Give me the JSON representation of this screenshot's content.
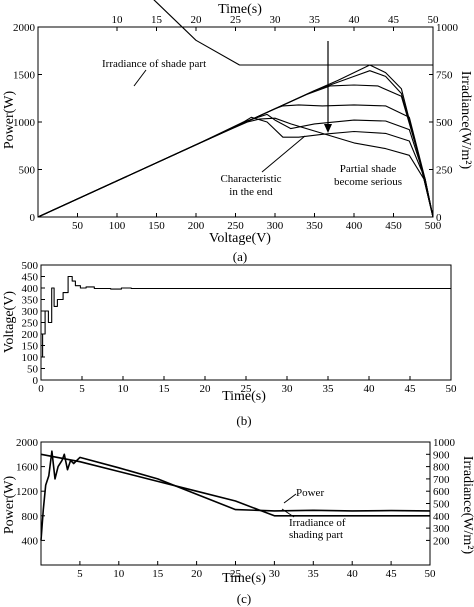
{
  "chart_data": [
    {
      "type": "line",
      "caption": "(a)",
      "xlabel": "Voltage(V)",
      "x2label": "Time(s)",
      "ylabel": "Power(W)",
      "y2label": "Irradiance(W/m²)",
      "xlim": [
        0,
        500
      ],
      "x2lim": [
        0,
        50
      ],
      "ylim": [
        0,
        2000
      ],
      "y2lim": [
        0,
        1000
      ],
      "xticks": [
        "50",
        "100",
        "150",
        "200",
        "250",
        "300",
        "350",
        "400",
        "450",
        "500"
      ],
      "x2ticks": [
        "10",
        "15",
        "20",
        "25",
        "30",
        "35",
        "40",
        "45",
        "50"
      ],
      "yticks": [
        "0",
        "500",
        "1000",
        "1500",
        "2000"
      ],
      "y2ticks": [
        "0",
        "250",
        "500",
        "750",
        "1000"
      ],
      "annotations": {
        "irradiance": "Irradiance of shade part",
        "char_end_1": "Characteristic",
        "char_end_2": "in the end",
        "partial_1": "Partial shade",
        "partial_2": "become serious"
      },
      "series": [
        {
          "x": [
            0,
            100,
            200,
            250,
            300,
            350,
            380,
            400,
            420,
            440,
            460,
            480,
            500
          ],
          "y": [
            0,
            380,
            760,
            950,
            1140,
            1330,
            1440,
            1520,
            1600,
            1520,
            1350,
            700,
            0
          ]
        },
        {
          "x": [
            0,
            100,
            200,
            250,
            300,
            350,
            400,
            420,
            440,
            460,
            480,
            500
          ],
          "y": [
            0,
            380,
            760,
            950,
            1140,
            1330,
            1480,
            1540,
            1480,
            1300,
            700,
            0
          ]
        },
        {
          "x": [
            0,
            100,
            200,
            250,
            300,
            340,
            370,
            400,
            430,
            460,
            480,
            500
          ],
          "y": [
            0,
            380,
            760,
            950,
            1140,
            1290,
            1380,
            1390,
            1380,
            1270,
            700,
            0
          ]
        },
        {
          "x": [
            0,
            100,
            200,
            250,
            300,
            310,
            330,
            360,
            400,
            440,
            470,
            490,
            500
          ],
          "y": [
            0,
            380,
            760,
            950,
            1140,
            1170,
            1180,
            1170,
            1180,
            1170,
            1050,
            400,
            0
          ]
        },
        {
          "x": [
            0,
            100,
            200,
            260,
            290,
            300,
            320,
            350,
            400,
            440,
            470,
            490,
            500
          ],
          "y": [
            0,
            380,
            760,
            1000,
            1080,
            1020,
            930,
            980,
            1020,
            1010,
            920,
            400,
            0
          ]
        },
        {
          "x": [
            0,
            100,
            200,
            250,
            270,
            290,
            310,
            330,
            360,
            400,
            440,
            470,
            490,
            500
          ],
          "y": [
            0,
            380,
            760,
            950,
            1050,
            1000,
            840,
            840,
            870,
            900,
            880,
            800,
            400,
            0
          ]
        },
        {
          "x": [
            0,
            100,
            200,
            240,
            265,
            280,
            300,
            320,
            360,
            400,
            440,
            470,
            490,
            500
          ],
          "y": [
            0,
            380,
            760,
            910,
            1000,
            1030,
            1040,
            980,
            880,
            780,
            720,
            650,
            380,
            0
          ]
        },
        {
          "x": [
            0,
            50,
            100,
            150,
            200,
            255,
            400,
            500
          ],
          "y": [
            1750,
            1540,
            1330,
            1130,
            930,
            800,
            800,
            800
          ],
          "axis": "irradiance"
        }
      ]
    },
    {
      "type": "line",
      "caption": "(b)",
      "xlabel": "Time(s)",
      "ylabel": "Voltage(V)",
      "xlim": [
        0,
        50
      ],
      "ylim": [
        0,
        500
      ],
      "xticks": [
        "0",
        "5",
        "10",
        "15",
        "20",
        "25",
        "30",
        "35",
        "40",
        "45",
        "50"
      ],
      "yticks": [
        "0",
        "50",
        "100",
        "150",
        "200",
        "250",
        "300",
        "350",
        "400",
        "450",
        "500"
      ],
      "series": [
        {
          "x": [
            0,
            0.2,
            0.2,
            0.5,
            0.5,
            0.9,
            0.9,
            1.3,
            1.3,
            1.6,
            1.6,
            2.0,
            2.0,
            2.7,
            2.7,
            3.3,
            3.3,
            3.8,
            3.8,
            4.2,
            4.2,
            4.8,
            4.8,
            5.5,
            5.5,
            6.5,
            6.5,
            8.5,
            8.5,
            9.8,
            9.8,
            11,
            11,
            50
          ],
          "y": [
            100,
            100,
            200,
            200,
            300,
            300,
            250,
            250,
            400,
            400,
            320,
            320,
            350,
            350,
            380,
            380,
            450,
            450,
            430,
            430,
            410,
            410,
            400,
            400,
            405,
            405,
            398,
            398,
            395,
            395,
            400,
            400,
            398,
            398
          ]
        }
      ]
    },
    {
      "type": "line",
      "caption": "(c)",
      "xlabel": "Time(s)",
      "ylabel": "Power(W)",
      "y2label": "Irradiance(W/m²)",
      "xlim": [
        0,
        50
      ],
      "ylim": [
        0,
        2000
      ],
      "y2lim": [
        0,
        1000
      ],
      "xticks": [
        "5",
        "10",
        "15",
        "20",
        "25",
        "30",
        "35",
        "40",
        "45",
        "50"
      ],
      "yticks": [
        "400",
        "800",
        "1200",
        "1600",
        "2000"
      ],
      "y2ticks": [
        "200",
        "300",
        "400",
        "500",
        "600",
        "700",
        "800",
        "900",
        "1000"
      ],
      "annotations": {
        "power": "Power",
        "irr_1": "Irradiance of",
        "irr_2": "shading part"
      },
      "series": [
        {
          "name": "Power",
          "x": [
            0,
            0.3,
            0.6,
            1.0,
            1.4,
            1.8,
            2.2,
            2.7,
            3.0,
            3.4,
            3.8,
            4.2,
            4.6,
            5.0,
            10,
            15,
            20,
            25,
            30,
            35,
            40,
            45,
            50
          ],
          "y": [
            400,
            900,
            1300,
            1450,
            1850,
            1400,
            1600,
            1700,
            1800,
            1550,
            1700,
            1650,
            1700,
            1750,
            1580,
            1400,
            1150,
            900,
            880,
            890,
            880,
            885,
            880
          ]
        },
        {
          "name": "Irradiance of shading part",
          "x": [
            0,
            5,
            10,
            15,
            20,
            25,
            30,
            35,
            40,
            45,
            50
          ],
          "y": [
            900,
            840,
            760,
            680,
            600,
            520,
            400,
            400,
            400,
            400,
            400
          ],
          "axis": "irradiance"
        }
      ]
    }
  ]
}
